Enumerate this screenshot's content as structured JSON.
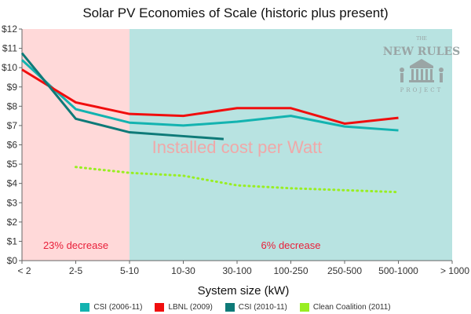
{
  "chart_data": {
    "type": "line",
    "title": "Solar PV Economies of Scale (historic plus present)",
    "xlabel": "System size (kW)",
    "ylabel": "",
    "categories": [
      "< 2",
      "2-5",
      "5-10",
      "10-30",
      "30-100",
      "100-250",
      "250-500",
      "500-1000",
      "> 1000"
    ],
    "y_ticks": [
      "$0",
      "$1",
      "$2",
      "$3",
      "$4",
      "$5",
      "$6",
      "$7",
      "$8",
      "$9",
      "$10",
      "$11",
      "$12"
    ],
    "ylim": [
      0,
      12
    ],
    "grid": false,
    "regions": [
      {
        "label": "23% decrease",
        "from_category": "< 2",
        "to_category": "5-10",
        "fill": "#ffd9d9",
        "text_color": "#e8203a"
      },
      {
        "label": "6% decrease",
        "from_category": "5-10",
        "to_category": "> 1000",
        "fill": "#b8e3e1",
        "text_color": "#e8203a"
      }
    ],
    "annotation": {
      "text": "Installed cost per Watt",
      "color": "#f0a8a8"
    },
    "series": [
      {
        "name": "CSI (2006-11)",
        "color": "#13b3b0",
        "style": "solid",
        "points": [
          [
            0,
            10.4
          ],
          [
            1,
            7.85
          ],
          [
            2,
            7.15
          ],
          [
            3,
            7.0
          ],
          [
            4,
            7.2
          ],
          [
            5,
            7.5
          ],
          [
            6,
            6.95
          ],
          [
            7,
            6.75
          ]
        ]
      },
      {
        "name": "LBNL (2009)",
        "color": "#f00e0e",
        "style": "solid",
        "points": [
          [
            0,
            9.9
          ],
          [
            1,
            8.2
          ],
          [
            2,
            7.6
          ],
          [
            3,
            7.5
          ],
          [
            4,
            7.9
          ],
          [
            5,
            7.9
          ],
          [
            6,
            7.1
          ],
          [
            7,
            7.4
          ]
        ]
      },
      {
        "name": "CSI (2010-11)",
        "color": "#0e7a78",
        "style": "solid",
        "points": [
          [
            0,
            10.75
          ],
          [
            1,
            7.35
          ],
          [
            2,
            6.65
          ],
          [
            3,
            6.45
          ],
          [
            3.75,
            6.3
          ]
        ]
      },
      {
        "name": "Clean Coalition (2011)",
        "color": "#99ee22",
        "style": "dotted",
        "points": [
          [
            1,
            4.85
          ],
          [
            2,
            4.55
          ],
          [
            3,
            4.4
          ],
          [
            4,
            3.9
          ],
          [
            5,
            3.75
          ],
          [
            6,
            3.65
          ],
          [
            7,
            3.55
          ]
        ]
      }
    ]
  },
  "logo": {
    "top": "THE",
    "main": "NEW RULES",
    "bottom": "PROJECT"
  }
}
